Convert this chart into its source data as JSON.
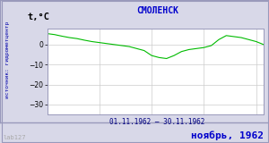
{
  "title": "СМОЛЕНСК",
  "ylabel": "t,°C",
  "xlabel_date_range": "01.11.1962 – 30.11.1962",
  "footer_label": "ноябрь, 1962",
  "source_label": "источник: гидрометцентр",
  "watermark": "lab127",
  "ylim": [
    -35,
    8
  ],
  "yticks": [
    0,
    -10,
    -20,
    -30
  ],
  "bg_color": "#d8d8e8",
  "plot_bg_color": "#ffffff",
  "border_color": "#9999bb",
  "line_color": "#00bb00",
  "title_color": "#0000cc",
  "footer_color": "#0000cc",
  "source_color": "#0000aa",
  "watermark_color": "#aaaaaa",
  "temperatures": [
    5.5,
    5.0,
    4.2,
    3.5,
    3.0,
    2.2,
    1.5,
    1.0,
    0.5,
    0.0,
    -0.5,
    -1.0,
    -2.0,
    -3.0,
    -5.5,
    -6.5,
    -7.0,
    -5.5,
    -3.5,
    -2.5,
    -2.0,
    -1.5,
    -0.5,
    2.5,
    4.5,
    4.0,
    3.5,
    2.5,
    1.5,
    0.0
  ]
}
